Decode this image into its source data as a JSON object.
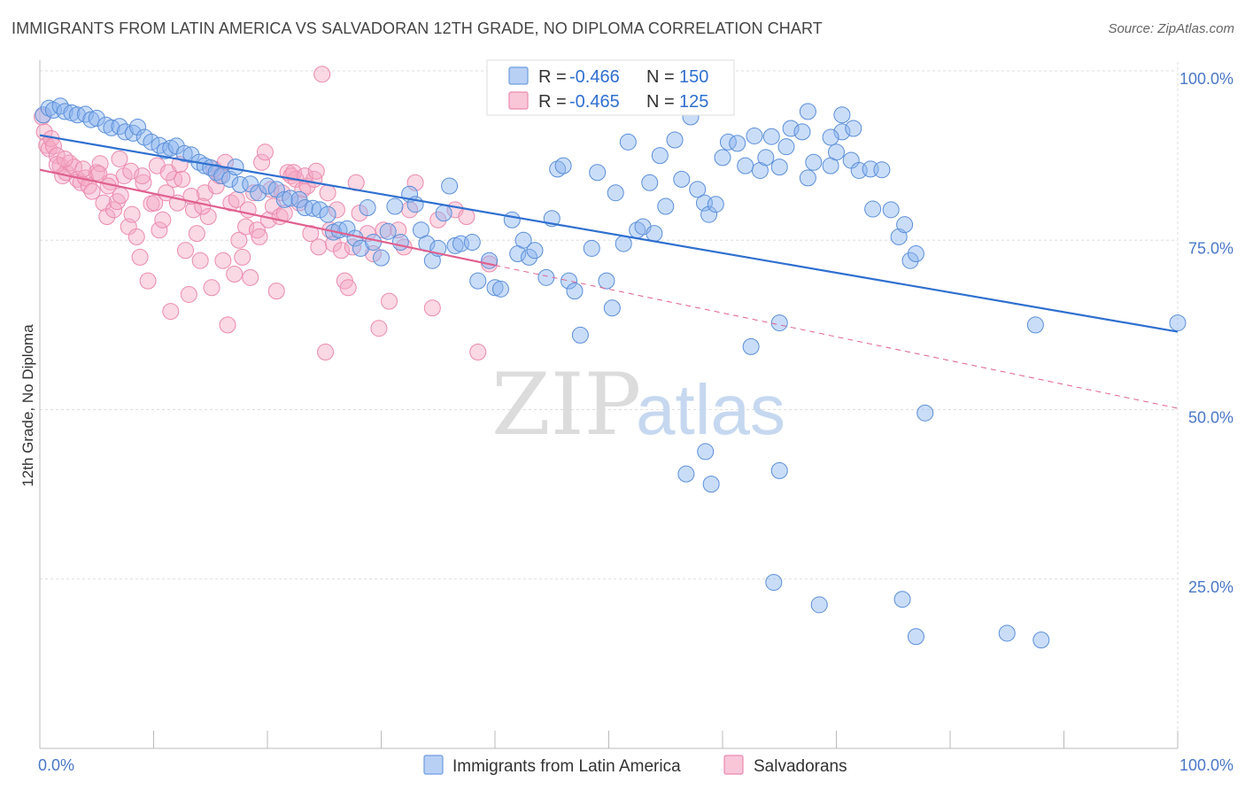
{
  "title": "IMMIGRANTS FROM LATIN AMERICA VS SALVADORAN 12TH GRADE, NO DIPLOMA CORRELATION CHART",
  "source": "Source: ZipAtlas.com",
  "watermark": {
    "zip": "ZIP",
    "atlas": "atlas"
  },
  "colors": {
    "blue": "#8ab4f0",
    "blue_stroke": "#5b8fd9",
    "blue_line": "#2f6fd0",
    "pink": "#f4a8c3",
    "pink_stroke": "#ec8aad",
    "pink_line": "#e0608e",
    "axis_text": "#4a78c8"
  },
  "legend": {
    "r_label": "R =",
    "n_label": "N =",
    "rows": [
      {
        "r": "-0.466",
        "n": "150"
      },
      {
        "r": "-0.465",
        "n": "125"
      }
    ]
  },
  "chart_data": {
    "type": "scatter",
    "xlabel": "",
    "ylabel": "12th Grade, No Diploma",
    "xlim": [
      0,
      100
    ],
    "ylim": [
      0,
      100
    ],
    "x_tick_labels": [
      "0.0%",
      "100.0%"
    ],
    "y_tick_labels": [
      "100.0%",
      "75.0%",
      "50.0%",
      "25.0%"
    ],
    "y_tick_values": [
      100,
      75,
      50,
      25
    ],
    "grid": true,
    "series": [
      {
        "name": "Immigrants from Latin America",
        "r": -0.466,
        "n": 150,
        "trend": {
          "x": [
            0,
            100
          ],
          "y": [
            90.5,
            61.5
          ]
        },
        "points": [
          [
            0.3,
            93.5
          ],
          [
            0.8,
            94.5
          ],
          [
            1.2,
            94.2
          ],
          [
            1.8,
            94.8
          ],
          [
            2.2,
            94.0
          ],
          [
            2.8,
            93.8
          ],
          [
            3.3,
            93.5
          ],
          [
            4.0,
            93.6
          ],
          [
            4.5,
            92.8
          ],
          [
            5.0,
            93.0
          ],
          [
            5.8,
            92.0
          ],
          [
            6.3,
            91.6
          ],
          [
            7.0,
            91.8
          ],
          [
            7.5,
            91.0
          ],
          [
            8.2,
            90.8
          ],
          [
            8.6,
            91.7
          ],
          [
            9.2,
            90.2
          ],
          [
            9.8,
            89.5
          ],
          [
            10.5,
            89.0
          ],
          [
            11.0,
            88.2
          ],
          [
            11.5,
            88.6
          ],
          [
            12.0,
            88.9
          ],
          [
            12.7,
            87.8
          ],
          [
            13.3,
            87.6
          ],
          [
            14.0,
            86.5
          ],
          [
            14.5,
            86.0
          ],
          [
            15.0,
            85.7
          ],
          [
            15.5,
            85.0
          ],
          [
            16.0,
            84.5
          ],
          [
            16.7,
            84.0
          ],
          [
            17.2,
            85.8
          ],
          [
            17.6,
            83.2
          ],
          [
            18.5,
            83.3
          ],
          [
            19.2,
            82.0
          ],
          [
            20.0,
            83.0
          ],
          [
            20.8,
            82.5
          ],
          [
            21.5,
            81.0
          ],
          [
            22.0,
            81.2
          ],
          [
            22.8,
            81.0
          ],
          [
            23.3,
            79.8
          ],
          [
            24.0,
            79.7
          ],
          [
            24.6,
            79.5
          ],
          [
            25.3,
            78.8
          ],
          [
            25.8,
            76.2
          ],
          [
            26.3,
            76.5
          ],
          [
            27.0,
            76.7
          ],
          [
            27.7,
            75.3
          ],
          [
            28.2,
            73.8
          ],
          [
            28.8,
            79.8
          ],
          [
            29.3,
            74.7
          ],
          [
            30.0,
            72.4
          ],
          [
            30.6,
            76.3
          ],
          [
            31.2,
            80.0
          ],
          [
            31.7,
            74.7
          ],
          [
            32.5,
            81.8
          ],
          [
            33.0,
            80.3
          ],
          [
            33.5,
            76.5
          ],
          [
            34.0,
            74.5
          ],
          [
            34.5,
            72.0
          ],
          [
            35.0,
            73.8
          ],
          [
            35.5,
            79.0
          ],
          [
            36.0,
            83.0
          ],
          [
            36.5,
            74.2
          ],
          [
            37.0,
            74.5
          ],
          [
            38.0,
            74.7
          ],
          [
            38.5,
            69.0
          ],
          [
            39.5,
            72.0
          ],
          [
            40.0,
            68.0
          ],
          [
            40.5,
            67.8
          ],
          [
            41.5,
            78.0
          ],
          [
            42.0,
            73.0
          ],
          [
            42.5,
            75.0
          ],
          [
            43.0,
            72.5
          ],
          [
            43.5,
            73.5
          ],
          [
            44.5,
            69.5
          ],
          [
            45.0,
            78.2
          ],
          [
            45.5,
            85.5
          ],
          [
            46.0,
            86.0
          ],
          [
            46.5,
            69.0
          ],
          [
            47.0,
            67.5
          ],
          [
            47.5,
            61.0
          ],
          [
            48.5,
            73.8
          ],
          [
            49.0,
            85.0
          ],
          [
            49.8,
            69.0
          ],
          [
            50.3,
            65.0
          ],
          [
            50.6,
            82.0
          ],
          [
            51.3,
            74.5
          ],
          [
            51.7,
            89.5
          ],
          [
            52.5,
            76.5
          ],
          [
            53.0,
            77.0
          ],
          [
            53.6,
            83.5
          ],
          [
            54.0,
            76.0
          ],
          [
            54.5,
            87.5
          ],
          [
            55.0,
            80.0
          ],
          [
            55.8,
            89.8
          ],
          [
            56.4,
            84.0
          ],
          [
            57.2,
            93.2
          ],
          [
            57.8,
            82.5
          ],
          [
            58.4,
            80.5
          ],
          [
            58.8,
            78.8
          ],
          [
            59.4,
            80.3
          ],
          [
            60.0,
            87.2
          ],
          [
            60.5,
            89.5
          ],
          [
            61.3,
            89.3
          ],
          [
            62.0,
            86.0
          ],
          [
            62.8,
            90.4
          ],
          [
            63.3,
            85.3
          ],
          [
            63.8,
            87.2
          ],
          [
            64.3,
            90.3
          ],
          [
            65.0,
            85.8
          ],
          [
            65.6,
            88.8
          ],
          [
            66.0,
            91.5
          ],
          [
            67.0,
            91.0
          ],
          [
            67.5,
            84.2
          ],
          [
            68.0,
            86.5
          ],
          [
            69.5,
            86.0
          ],
          [
            70.0,
            88.0
          ],
          [
            70.5,
            91.0
          ],
          [
            71.3,
            86.8
          ],
          [
            72.0,
            85.3
          ],
          [
            73.0,
            85.5
          ],
          [
            74.0,
            85.4
          ],
          [
            74.8,
            79.5
          ],
          [
            75.5,
            75.5
          ],
          [
            76.0,
            77.3
          ],
          [
            76.5,
            72.0
          ],
          [
            77.0,
            73.0
          ],
          [
            77.8,
            49.5
          ],
          [
            65.0,
            41.0
          ],
          [
            58.5,
            43.8
          ],
          [
            56.8,
            40.5
          ],
          [
            59.0,
            39.0
          ],
          [
            75.8,
            22.0
          ],
          [
            77.0,
            16.5
          ],
          [
            64.5,
            24.5
          ],
          [
            68.5,
            21.2
          ],
          [
            85.0,
            17.0
          ],
          [
            88.0,
            16.0
          ],
          [
            62.5,
            59.3
          ],
          [
            65.0,
            62.8
          ],
          [
            67.5,
            94.0
          ],
          [
            69.5,
            90.2
          ],
          [
            70.5,
            93.5
          ],
          [
            71.5,
            91.5
          ],
          [
            87.5,
            62.5
          ],
          [
            100,
            62.8
          ],
          [
            73.2,
            79.6
          ]
        ]
      },
      {
        "name": "Salvadorans",
        "r": -0.465,
        "n": 125,
        "trend": {
          "x": [
            0,
            40
          ],
          "y": [
            85.4,
            71.3
          ]
        },
        "trend_dashed": {
          "x": [
            40,
            100
          ],
          "y": [
            71.3,
            50.2
          ]
        },
        "points": [
          [
            0.2,
            93.2
          ],
          [
            0.4,
            91.0
          ],
          [
            0.6,
            89.0
          ],
          [
            0.8,
            88.5
          ],
          [
            1.0,
            90.0
          ],
          [
            1.2,
            88.9
          ],
          [
            1.5,
            87.5
          ],
          [
            1.8,
            86.0
          ],
          [
            2.0,
            84.5
          ],
          [
            2.3,
            85.0
          ],
          [
            2.6,
            86.4
          ],
          [
            3.0,
            85.8
          ],
          [
            3.3,
            84.0
          ],
          [
            3.6,
            83.5
          ],
          [
            4.0,
            84.2
          ],
          [
            4.3,
            83.0
          ],
          [
            4.6,
            82.2
          ],
          [
            5.0,
            85.0
          ],
          [
            5.3,
            86.3
          ],
          [
            5.6,
            80.5
          ],
          [
            5.9,
            78.5
          ],
          [
            6.2,
            83.6
          ],
          [
            6.5,
            79.5
          ],
          [
            6.8,
            80.7
          ],
          [
            7.1,
            81.6
          ],
          [
            7.4,
            84.5
          ],
          [
            7.8,
            77.0
          ],
          [
            8.1,
            78.8
          ],
          [
            8.5,
            75.5
          ],
          [
            8.8,
            72.5
          ],
          [
            9.1,
            83.5
          ],
          [
            9.5,
            69.0
          ],
          [
            9.8,
            80.4
          ],
          [
            10.1,
            80.5
          ],
          [
            10.5,
            76.5
          ],
          [
            10.8,
            78.0
          ],
          [
            11.1,
            82.0
          ],
          [
            11.5,
            64.5
          ],
          [
            11.8,
            84.0
          ],
          [
            12.1,
            80.5
          ],
          [
            12.5,
            84.0
          ],
          [
            12.8,
            73.5
          ],
          [
            13.1,
            67.0
          ],
          [
            13.5,
            79.5
          ],
          [
            13.8,
            76.0
          ],
          [
            14.1,
            72.0
          ],
          [
            14.5,
            82.0
          ],
          [
            14.8,
            78.5
          ],
          [
            15.1,
            68.0
          ],
          [
            15.5,
            83.0
          ],
          [
            15.8,
            84.5
          ],
          [
            16.1,
            72.0
          ],
          [
            16.5,
            62.5
          ],
          [
            16.8,
            80.5
          ],
          [
            17.1,
            70.0
          ],
          [
            17.5,
            75.0
          ],
          [
            17.8,
            72.5
          ],
          [
            18.1,
            77.0
          ],
          [
            18.5,
            69.5
          ],
          [
            18.8,
            82.0
          ],
          [
            19.1,
            76.5
          ],
          [
            19.5,
            86.5
          ],
          [
            19.8,
            88.0
          ],
          [
            20.1,
            78.0
          ],
          [
            20.5,
            80.0
          ],
          [
            20.8,
            67.5
          ],
          [
            21.1,
            78.5
          ],
          [
            21.5,
            79.0
          ],
          [
            21.8,
            85.0
          ],
          [
            22.1,
            84.5
          ],
          [
            22.5,
            84.0
          ],
          [
            22.8,
            80.5
          ],
          [
            23.1,
            82.5
          ],
          [
            23.5,
            83.0
          ],
          [
            23.8,
            76.0
          ],
          [
            24.1,
            84.0
          ],
          [
            24.5,
            74.0
          ],
          [
            24.8,
            99.5
          ],
          [
            25.1,
            58.5
          ],
          [
            25.5,
            76.5
          ],
          [
            25.8,
            74.5
          ],
          [
            26.1,
            79.5
          ],
          [
            26.5,
            73.5
          ],
          [
            26.8,
            69.0
          ],
          [
            27.1,
            68.0
          ],
          [
            27.5,
            74.0
          ],
          [
            27.8,
            83.5
          ],
          [
            28.1,
            79.0
          ],
          [
            28.8,
            76.0
          ],
          [
            29.3,
            73.0
          ],
          [
            29.8,
            62.0
          ],
          [
            30.2,
            76.5
          ],
          [
            30.7,
            66.0
          ],
          [
            31.5,
            76.5
          ],
          [
            32.0,
            74.0
          ],
          [
            32.5,
            79.5
          ],
          [
            33.0,
            83.5
          ],
          [
            34.5,
            65.0
          ],
          [
            35.0,
            78.0
          ],
          [
            36.5,
            79.5
          ],
          [
            37.5,
            78.5
          ],
          [
            38.5,
            58.5
          ],
          [
            39.5,
            71.5
          ],
          [
            1.5,
            86.2
          ],
          [
            2.2,
            87.0
          ],
          [
            3.8,
            85.5
          ],
          [
            5.2,
            84.8
          ],
          [
            6.0,
            83.0
          ],
          [
            7.0,
            87.0
          ],
          [
            8.0,
            85.2
          ],
          [
            9.0,
            84.5
          ],
          [
            10.3,
            86.0
          ],
          [
            11.3,
            85.0
          ],
          [
            12.3,
            86.2
          ],
          [
            13.3,
            81.5
          ],
          [
            14.3,
            80.0
          ],
          [
            15.3,
            85.5
          ],
          [
            16.3,
            86.5
          ],
          [
            17.3,
            81.0
          ],
          [
            18.3,
            79.5
          ],
          [
            19.3,
            75.5
          ],
          [
            20.3,
            82.5
          ],
          [
            21.3,
            82.0
          ],
          [
            22.3,
            85.0
          ],
          [
            23.3,
            84.5
          ],
          [
            24.3,
            85.2
          ],
          [
            25.3,
            82.0
          ]
        ]
      }
    ]
  },
  "bottom_legend": [
    "Immigrants from Latin America",
    "Salvadorans"
  ]
}
